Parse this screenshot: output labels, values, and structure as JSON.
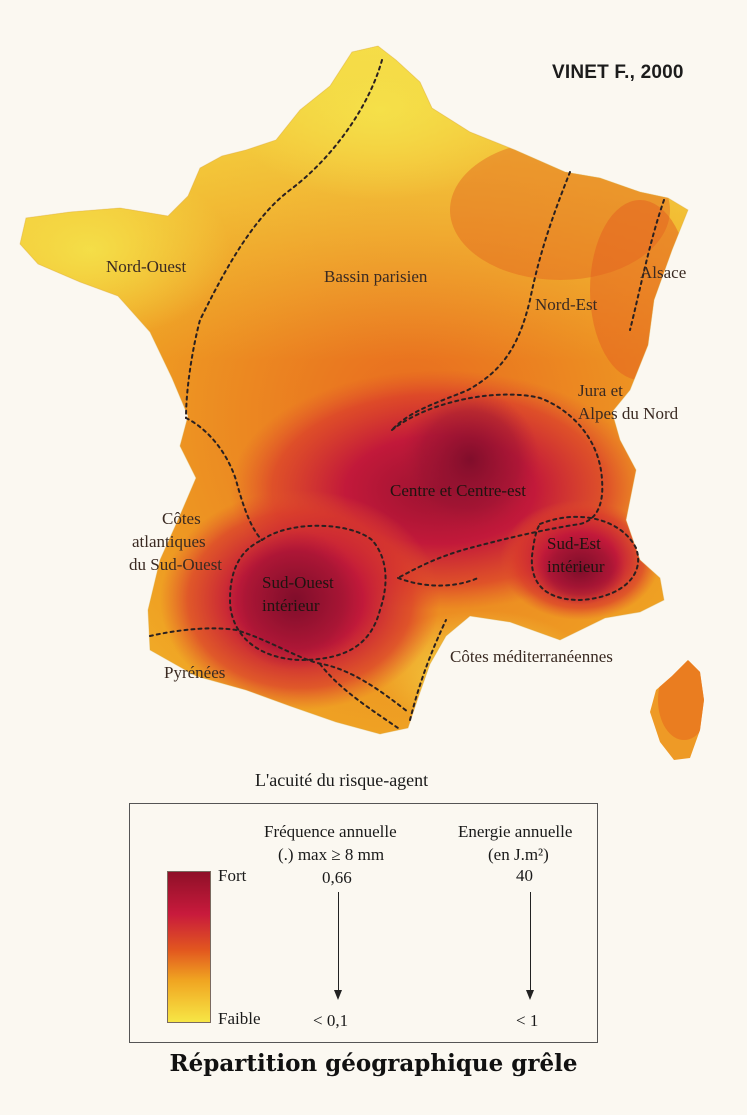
{
  "credit": "VINET F., 2000",
  "regions": {
    "nord_ouest": "Nord-Ouest",
    "bassin_parisien": "Bassin parisien",
    "nord_est": "Nord-Est",
    "alsace": "Alsace",
    "jura_line1": "Jura et",
    "jura_line2": "Alpes du Nord",
    "centre": "Centre et Centre-est",
    "cotes_atl_line1": "Côtes",
    "cotes_atl_line2": "atlantiques",
    "cotes_atl_line3": "du Sud-Ouest",
    "so_int_line1": "Sud-Ouest",
    "so_int_line2": "intérieur",
    "se_int_line1": "Sud-Est",
    "se_int_line2": "intérieur",
    "pyrenees": "Pyrénées",
    "cotes_med": "Côtes méditerranéennes"
  },
  "legend": {
    "title": "L'acuité du risque-agent",
    "scale_top": "Fort",
    "scale_bottom": "Faible",
    "freq_header_line1": "Fréquence annuelle",
    "freq_header_line2": "(.) max ≥ 8 mm",
    "freq_max": "0,66",
    "freq_min": "< 0,1",
    "energy_header_line1": "Energie annuelle",
    "energy_header_line2": "(en J.m²)",
    "energy_max": "40",
    "energy_min": "< 1"
  },
  "title": "Répartition géographique grêle",
  "colors": {
    "faible": "#f7e645",
    "mid": "#e2571f",
    "fort": "#8f1028"
  }
}
